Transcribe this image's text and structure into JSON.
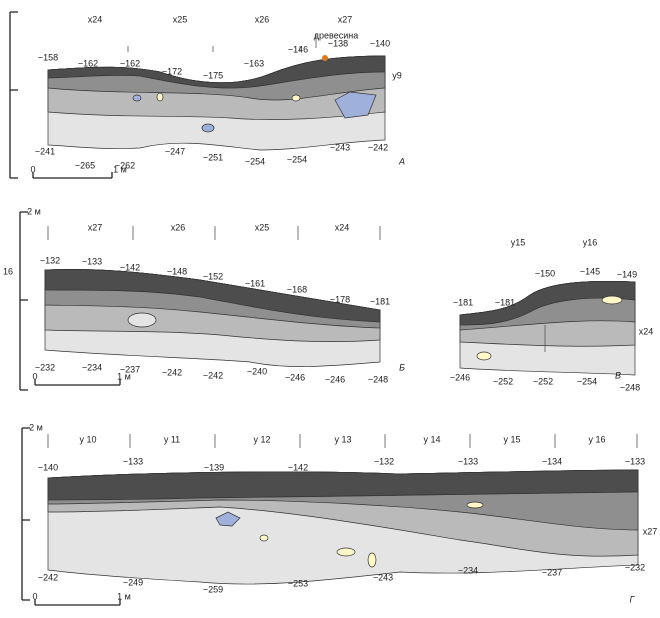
{
  "panels": [
    {
      "letter": "А",
      "columns": [
        "x24",
        "x25",
        "x26",
        "x27"
      ],
      "row_labels": [
        "y9"
      ],
      "annotation": "древесина",
      "top_elevations": [
        "−158",
        "−162",
        "−162",
        "−172",
        "−175",
        "−163",
        "−146",
        "−138",
        "−140"
      ],
      "bottom_elevations": [
        "−241",
        "−265",
        "−262",
        "−247",
        "−251",
        "−254",
        "−254",
        "−243",
        "−242"
      ],
      "scale_zero": "0",
      "scale_length": "1 м"
    },
    {
      "letter": "Б",
      "columns": [
        "x27",
        "x26",
        "x25",
        "x24"
      ],
      "scale_height": "2 м",
      "side_label": "16",
      "top_elevations": [
        "−132",
        "−133",
        "−142",
        "−148",
        "−152",
        "−161",
        "−168",
        "−178",
        "−181"
      ],
      "bottom_elevations": [
        "−232",
        "−234",
        "−237",
        "−242",
        "−242",
        "−240",
        "−246",
        "−246",
        "−248"
      ],
      "scale_zero": "0",
      "scale_length": "1 м"
    },
    {
      "letter": "В",
      "columns": [
        "y15",
        "y16"
      ],
      "row_labels": [
        "x24"
      ],
      "top_elevations": [
        "−181",
        "−181",
        "−150",
        "−145",
        "−149"
      ],
      "bottom_elevations": [
        "−246",
        "−252",
        "−252",
        "−254",
        "−248"
      ]
    },
    {
      "letter": "Г",
      "columns": [
        "y 10",
        "y 11",
        "y 12",
        "y 13",
        "y 14",
        "y 15",
        "y 16"
      ],
      "row_labels": [
        "x27"
      ],
      "scale_height": "2 м",
      "top_elevations": [
        "−140",
        "−133",
        "−139",
        "−142",
        "−132",
        "−133",
        "−134",
        "−133"
      ],
      "bottom_elevations": [
        "−242",
        "−249",
        "−259",
        "−253",
        "−243",
        "−234",
        "−237",
        "−232"
      ],
      "scale_zero": "0",
      "scale_length": "1 м"
    }
  ]
}
